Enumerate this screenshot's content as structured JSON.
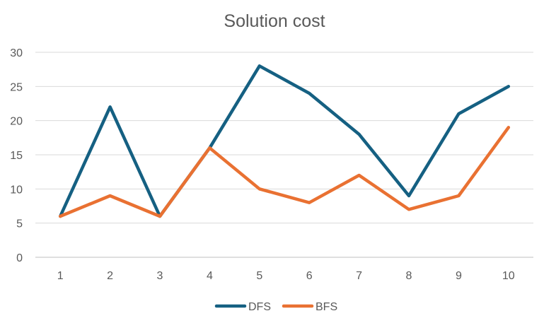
{
  "chart_data": {
    "type": "line",
    "title": "Solution cost",
    "xlabel": "",
    "ylabel": "",
    "categories": [
      "1",
      "2",
      "3",
      "4",
      "5",
      "6",
      "7",
      "8",
      "9",
      "10"
    ],
    "ylim": [
      0,
      30
    ],
    "yticks": [
      0,
      5,
      10,
      15,
      20,
      25,
      30
    ],
    "grid": true,
    "legend_position": "bottom",
    "series": [
      {
        "name": "DFS",
        "color": "#156082",
        "values": [
          6,
          22,
          6,
          16,
          28,
          24,
          18,
          9,
          21,
          25
        ]
      },
      {
        "name": "BFS",
        "color": "#E97132",
        "values": [
          6,
          9,
          6,
          16,
          10,
          8,
          12,
          7,
          9,
          19
        ]
      }
    ]
  }
}
